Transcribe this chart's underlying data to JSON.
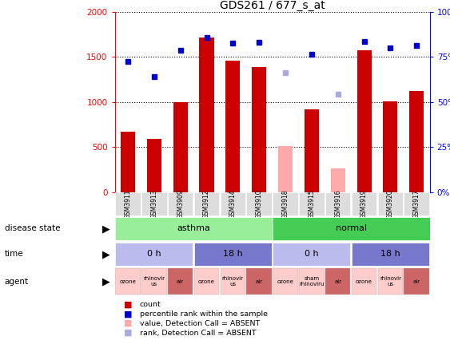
{
  "title": "GDS261 / 677_s_at",
  "samples": [
    "GSM3911",
    "GSM3913",
    "GSM3909",
    "GSM3912",
    "GSM3914",
    "GSM3910",
    "GSM3918",
    "GSM3915",
    "GSM3916",
    "GSM3919",
    "GSM3920",
    "GSM3917"
  ],
  "bar_values": [
    670,
    590,
    1000,
    1720,
    1460,
    1390,
    null,
    920,
    null,
    1570,
    1010,
    1120
  ],
  "bar_absent_values": [
    null,
    null,
    null,
    null,
    null,
    null,
    510,
    null,
    260,
    null,
    null,
    null
  ],
  "percentile_values": [
    1450,
    1280,
    1570,
    1720,
    1650,
    1660,
    null,
    1530,
    null,
    1670,
    1600,
    1630
  ],
  "percentile_absent_values": [
    null,
    null,
    null,
    null,
    null,
    null,
    1330,
    null,
    1090,
    null,
    null,
    null
  ],
  "ylim": [
    0,
    2000
  ],
  "y_ticks": [
    0,
    500,
    1000,
    1500,
    2000
  ],
  "y_right_ticks": [
    0,
    25,
    50,
    75,
    100
  ],
  "bar_color": "#cc0000",
  "bar_absent_color": "#ffaaaa",
  "dot_color": "#0000cc",
  "dot_absent_color": "#aaaadd",
  "disease_state_asthma_color": "#99ee99",
  "disease_state_normal_color": "#44cc55",
  "time_light_color": "#bbbbee",
  "time_dark_color": "#7777cc",
  "agent_pink_color": "#ffcccc",
  "agent_red_color": "#cc6666",
  "background_color": "#ffffff",
  "time_blocks": [
    {
      "label": "0 h",
      "start": 0,
      "end": 3,
      "color": "#bbbbee"
    },
    {
      "label": "18 h",
      "start": 3,
      "end": 6,
      "color": "#7777cc"
    },
    {
      "label": "0 h",
      "start": 6,
      "end": 9,
      "color": "#bbbbee"
    },
    {
      "label": "18 h",
      "start": 9,
      "end": 12,
      "color": "#7777cc"
    }
  ],
  "agent_cells": [
    {
      "label": "ozone",
      "col": 0,
      "color": "#ffcccc"
    },
    {
      "label": "rhinovir\nus",
      "col": 1,
      "color": "#ffcccc"
    },
    {
      "label": "air",
      "col": 2,
      "color": "#cc6666"
    },
    {
      "label": "ozone",
      "col": 3,
      "color": "#ffcccc"
    },
    {
      "label": "rhinovir\nus",
      "col": 4,
      "color": "#ffcccc"
    },
    {
      "label": "air",
      "col": 5,
      "color": "#cc6666"
    },
    {
      "label": "ozone",
      "col": 6,
      "color": "#ffcccc"
    },
    {
      "label": "sham\nrhinoviru",
      "col": 7,
      "color": "#ffcccc"
    },
    {
      "label": "air",
      "col": 8,
      "color": "#cc6666"
    },
    {
      "label": "ozone",
      "col": 9,
      "color": "#ffcccc"
    },
    {
      "label": "rhinovir\nus",
      "col": 10,
      "color": "#ffcccc"
    },
    {
      "label": "air",
      "col": 11,
      "color": "#cc6666"
    }
  ]
}
